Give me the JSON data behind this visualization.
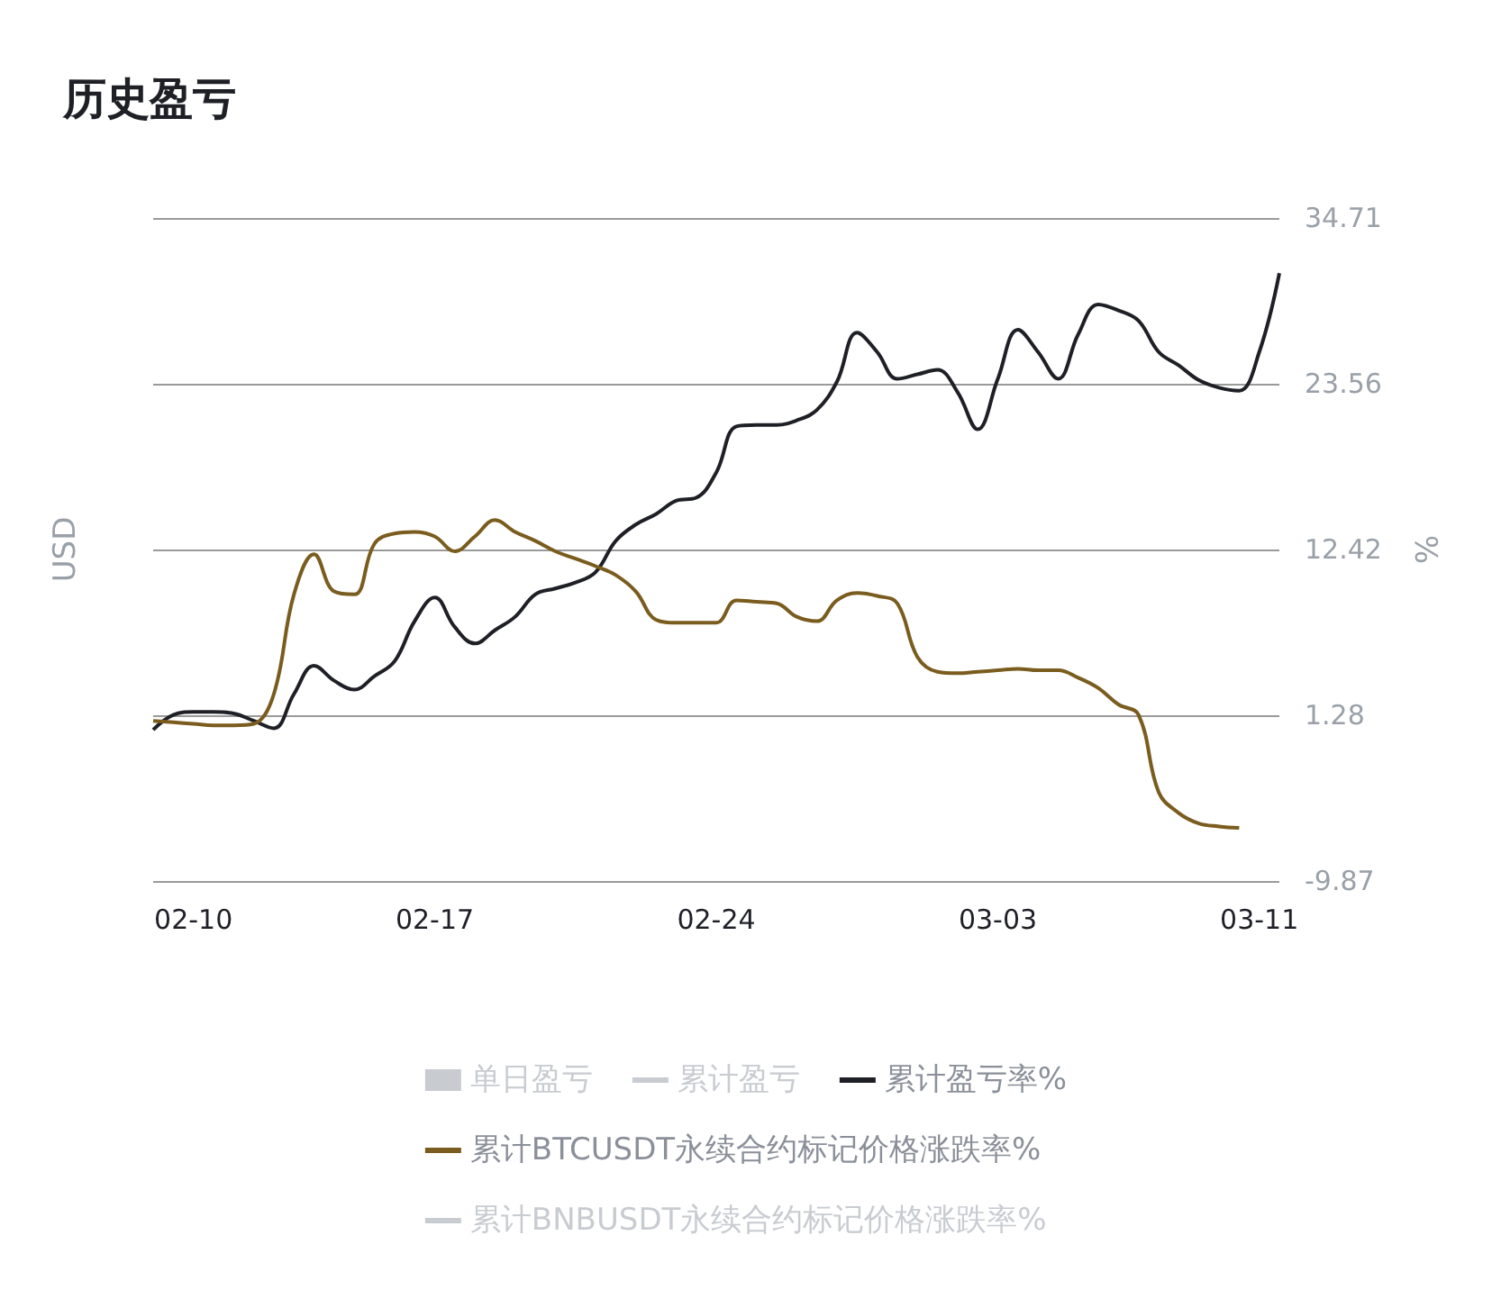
{
  "chart_data": {
    "type": "line",
    "title": "历史盈亏",
    "ylabel": "USD",
    "y2label": "%",
    "categories": [
      null,
      null,
      "02-10",
      null,
      null,
      null,
      null,
      null,
      null,
      null,
      null,
      null,
      null,
      null,
      "02-17",
      null,
      null,
      null,
      null,
      null,
      null,
      null,
      null,
      null,
      null,
      null,
      null,
      null,
      "02-24",
      null,
      null,
      null,
      null,
      null,
      null,
      null,
      null,
      null,
      null,
      null,
      null,
      null,
      "03-03",
      null,
      null,
      null,
      null,
      null,
      null,
      null,
      null,
      null,
      null,
      null,
      null,
      "03-11",
      null
    ],
    "y2lim": [
      -9.87,
      34.71
    ],
    "y2ticks": [
      -9.87,
      1.28,
      12.42,
      23.56,
      34.71
    ],
    "grid": "y",
    "legend": "bottom",
    "series": [
      {
        "name": "单日盈亏",
        "type": "bar",
        "color": "#d3d6db",
        "values": [
          null,
          null,
          null,
          null,
          null,
          null,
          null,
          null,
          null,
          null,
          null,
          null,
          null,
          null,
          null,
          null,
          null,
          null,
          null,
          null,
          null,
          null,
          null,
          null,
          null,
          null,
          null,
          null,
          null,
          null,
          null,
          null,
          null,
          null,
          null,
          null,
          null,
          null,
          null,
          null,
          null,
          null,
          null,
          null,
          null,
          null,
          null,
          null,
          null,
          null,
          null,
          null,
          null,
          null,
          null,
          null,
          null
        ]
      },
      {
        "name": "累计盈亏",
        "color": "#d3d6db",
        "values": [
          null,
          null,
          null,
          null,
          null,
          null,
          null,
          null,
          null,
          null,
          null,
          null,
          null,
          null,
          null,
          null,
          null,
          null,
          null,
          null,
          null,
          null,
          null,
          null,
          null,
          null,
          null,
          null,
          null,
          null,
          null,
          null,
          null,
          null,
          null,
          null,
          null,
          null,
          null,
          null,
          null,
          null,
          null,
          null,
          null,
          null,
          null,
          null,
          null,
          null,
          null,
          null,
          null,
          null,
          null,
          null,
          null
        ]
      },
      {
        "name": "累计盈亏率%",
        "axis": "y2",
        "color": "#1e2026",
        "values": [
          0.3,
          1.3,
          1.5,
          1.5,
          1.4,
          0.9,
          0.4,
          2.7,
          4.6,
          3.6,
          3.0,
          3.9,
          4.9,
          7.6,
          9.2,
          7.2,
          6.1,
          7.0,
          7.9,
          9.4,
          9.8,
          10.2,
          10.9,
          13.0,
          14.1,
          14.8,
          15.7,
          15.9,
          17.6,
          20.7,
          20.8,
          20.8,
          21.1,
          21.8,
          23.7,
          27.0,
          25.7,
          23.9,
          24.2,
          24.5,
          23.0,
          20.5,
          23.9,
          27.2,
          25.7,
          23.9,
          26.9,
          28.9,
          28.5,
          27.8,
          25.7,
          24.8,
          23.8,
          23.3,
          23.1,
          25.7,
          31.0
        ]
      },
      {
        "name": "累计BTCUSDT永续合约标记价格涨跌率%",
        "axis": "y2",
        "color": "#7a5c1e",
        "values": [
          0.9,
          0.8,
          0.7,
          0.6,
          0.6,
          0.7,
          2.7,
          9.4,
          12.1,
          9.6,
          9.4,
          12.8,
          13.5,
          13.6,
          13.3,
          12.3,
          13.3,
          14.4,
          13.6,
          13.0,
          12.3,
          11.8,
          11.3,
          10.7,
          9.6,
          7.7,
          7.5,
          7.5,
          7.5,
          9.0,
          8.9,
          8.8,
          7.9,
          7.6,
          9.0,
          9.5,
          9.3,
          8.8,
          5.2,
          4.2,
          4.1,
          4.2,
          4.3,
          4.4,
          4.3,
          4.3,
          3.8,
          3.1,
          2.0,
          1.3,
          -3.9,
          -5.3,
          -6.0,
          -6.2,
          -6.3,
          null,
          null
        ]
      },
      {
        "name": "累计BNBUSDT永续合约标记价格涨跌率%",
        "color": "#d3d6db",
        "values": [
          null,
          null,
          null,
          null,
          null,
          null,
          null,
          null,
          null,
          null,
          null,
          null,
          null,
          null,
          null,
          null,
          null,
          null,
          null,
          null,
          null,
          null,
          null,
          null,
          null,
          null,
          null,
          null,
          null,
          null,
          null,
          null,
          null,
          null,
          null,
          null,
          null,
          null,
          null,
          null,
          null,
          null,
          null,
          null,
          null,
          null,
          null,
          null,
          null,
          null,
          null,
          null,
          null,
          null,
          null,
          null,
          null
        ]
      }
    ]
  }
}
